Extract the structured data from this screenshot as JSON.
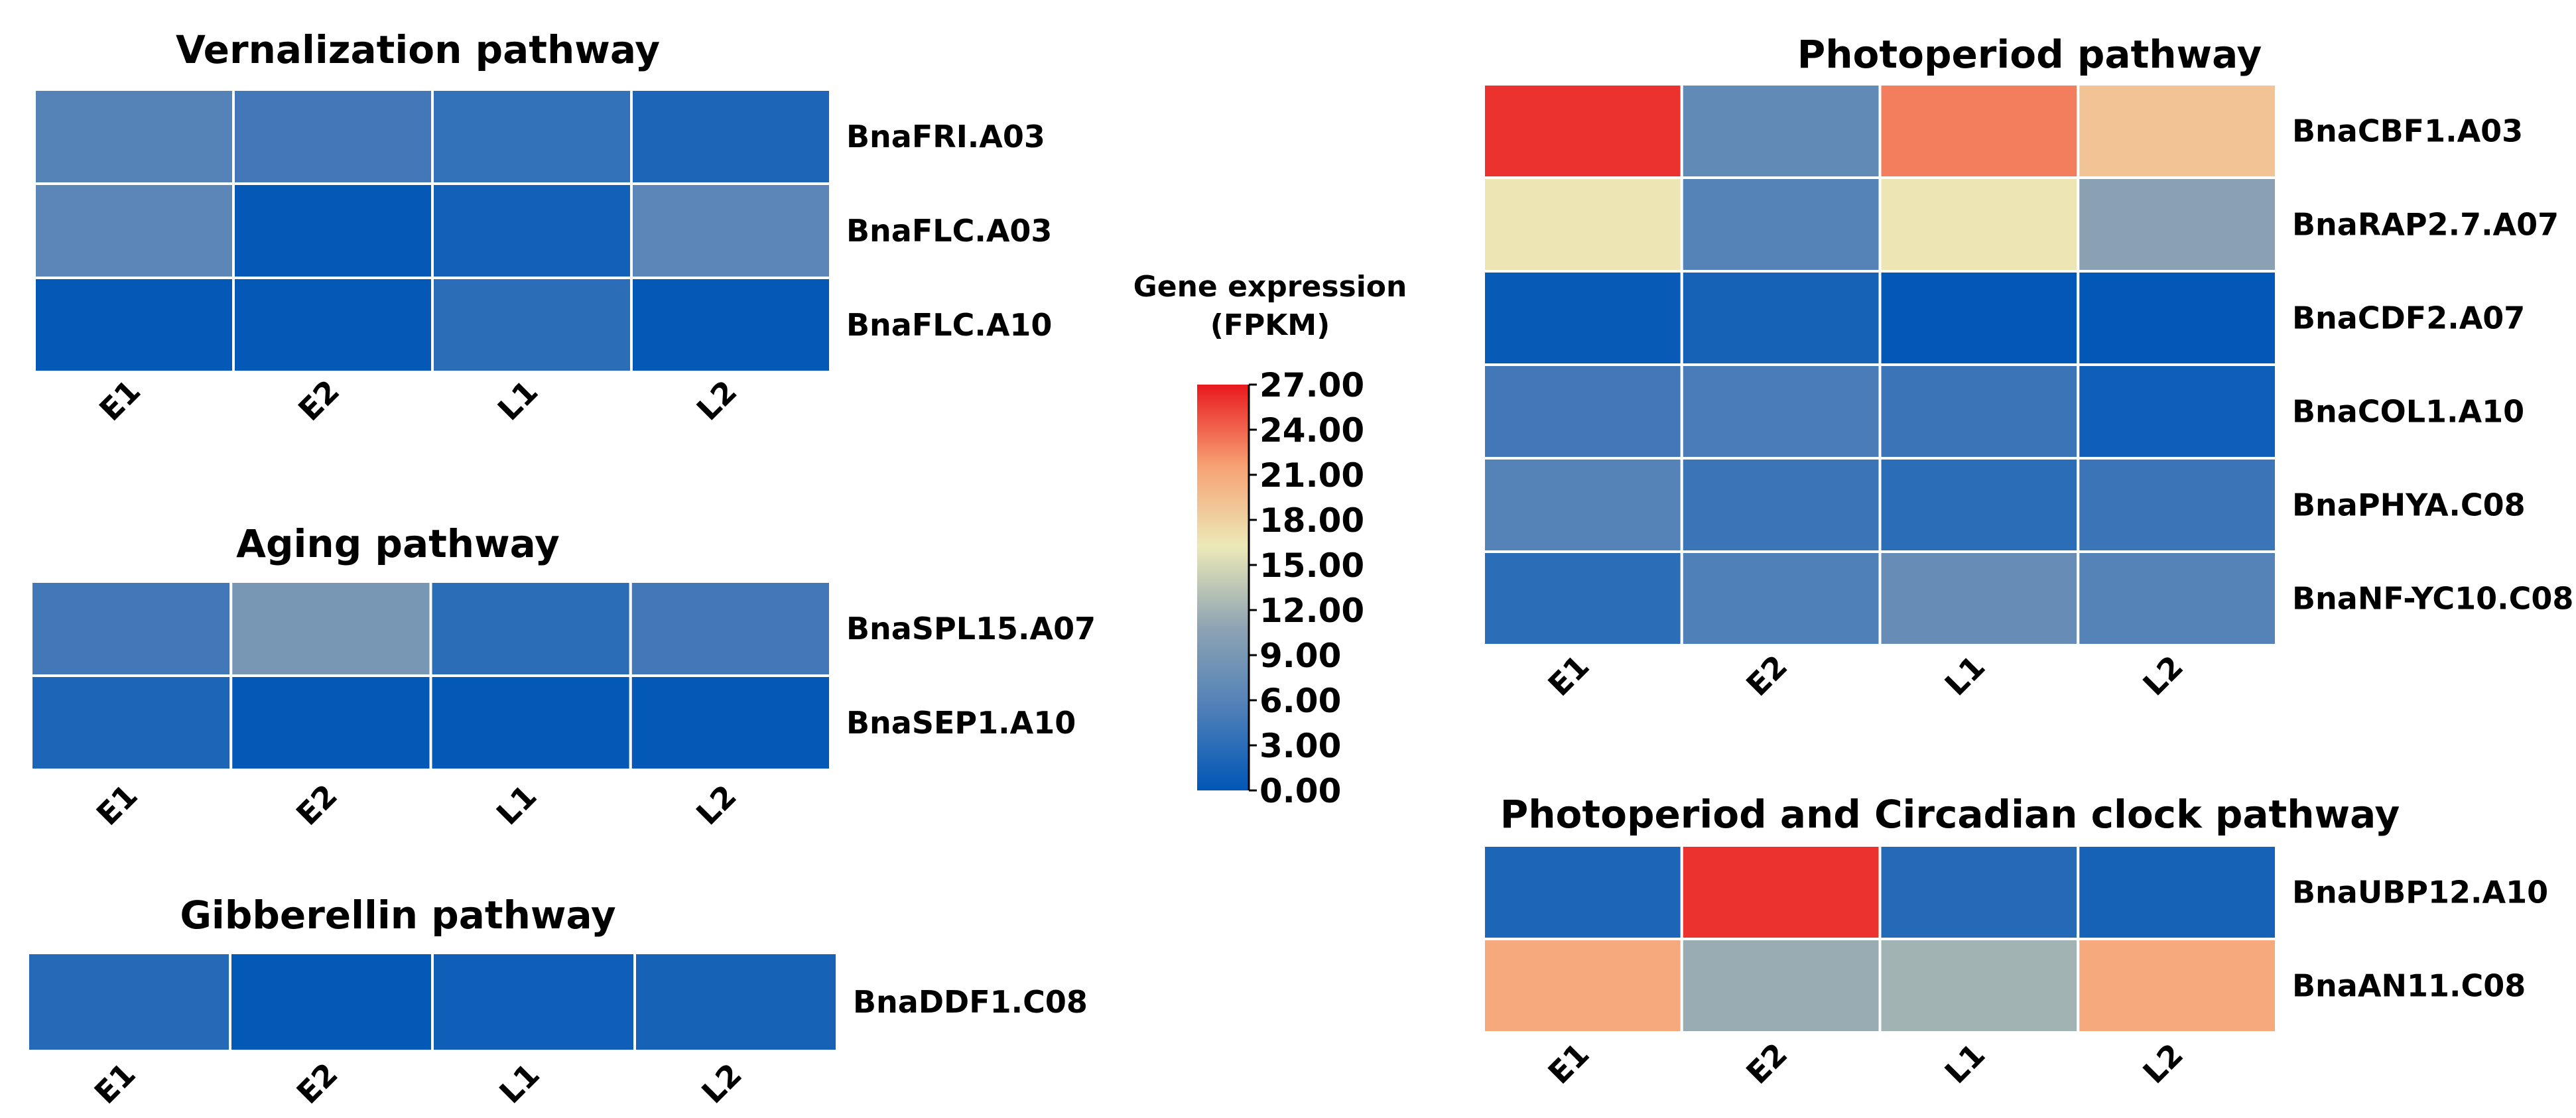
{
  "chart_data": {
    "type": "heatmap",
    "samples": [
      "E1",
      "E2",
      "L1",
      "L2"
    ],
    "colorbar": {
      "title_line1": "Gene expression",
      "title_line2": "(FPKM)",
      "min": 0,
      "max": 27,
      "ticks": [
        "0.00",
        "3.00",
        "6.00",
        "9.00",
        "12.00",
        "15.00",
        "18.00",
        "21.00",
        "24.00",
        "27.00"
      ],
      "color_stops": [
        "#0057b7",
        "#4f7fb8",
        "#8da3b3",
        "#ece9b8",
        "#f7a174",
        "#e8191e"
      ]
    },
    "panels": [
      {
        "id": "vernalization",
        "title": "Vernalization pathway",
        "genes": [
          "BnaFRI.A03",
          "BnaFLC.A03",
          "BnaFLC.A10"
        ],
        "values": [
          [
            6.0,
            4.5,
            3.5,
            2.0
          ],
          [
            6.5,
            0.3,
            1.2,
            6.5
          ],
          [
            0.3,
            0.3,
            3.0,
            0.3
          ]
        ]
      },
      {
        "id": "aging",
        "title": "Aging pathway",
        "genes": [
          "BnaSPL15.A07",
          "BnaSEP1.A10"
        ],
        "values": [
          [
            4.5,
            9.0,
            3.0,
            4.5
          ],
          [
            2.0,
            0.3,
            0.3,
            0.3
          ]
        ]
      },
      {
        "id": "gibberellin",
        "title": "Gibberellin pathway",
        "genes": [
          "BnaDDF1.C08"
        ],
        "values": [
          [
            2.5,
            0.3,
            1.0,
            1.5
          ]
        ]
      },
      {
        "id": "photoperiod",
        "title": "Photoperiod pathway",
        "genes": [
          "BnaCBF1.A03",
          "BnaRAP2.7.A07",
          "BnaCDF2.A07",
          "BnaCOL1.A10",
          "BnaPHYA.C08",
          "BnaNF-YC10.C08"
        ],
        "values": [
          [
            26.0,
            7.0,
            23.0,
            19.0
          ],
          [
            16.5,
            6.0,
            16.5,
            10.5
          ],
          [
            0.5,
            1.5,
            0.2,
            0.2
          ],
          [
            4.5,
            5.0,
            4.0,
            1.0
          ],
          [
            6.0,
            4.0,
            3.0,
            4.0
          ],
          [
            3.0,
            5.5,
            7.5,
            6.0
          ]
        ]
      },
      {
        "id": "circadian",
        "title": "Photoperiod and Circadian clock pathway",
        "genes": [
          "BnaUBP12.A10",
          "BnaAN11.C08"
        ],
        "values": [
          [
            2.0,
            26.0,
            2.5,
            1.5
          ],
          [
            21.0,
            11.5,
            12.0,
            21.0
          ]
        ]
      }
    ]
  }
}
